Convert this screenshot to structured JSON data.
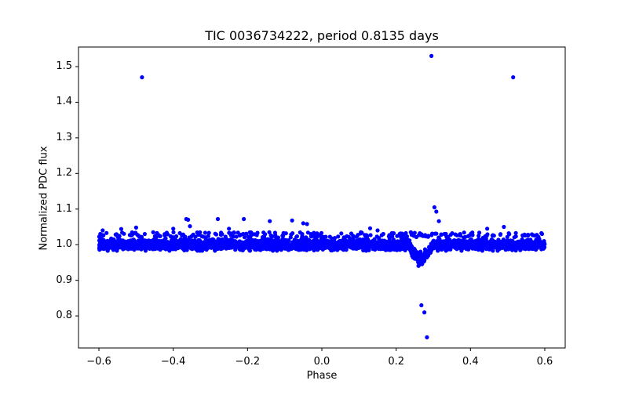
{
  "chart_data": {
    "type": "scatter",
    "title": "TIC 0036734222, period 0.8135 days",
    "xlabel": "Phase",
    "ylabel": "Normalized PDC flux",
    "xlim": [
      -0.655,
      0.655
    ],
    "ylim": [
      0.71,
      1.555
    ],
    "xticks": [
      -0.6,
      -0.4,
      -0.2,
      0.0,
      0.2,
      0.4,
      0.6
    ],
    "xtick_labels": [
      "−0.6",
      "−0.4",
      "−0.2",
      "0.0",
      "0.2",
      "0.4",
      "0.6"
    ],
    "yticks": [
      0.8,
      0.9,
      1.0,
      1.1,
      1.2,
      1.3,
      1.4,
      1.5
    ],
    "ytick_labels": [
      "0.8",
      "0.9",
      "1.0",
      "1.1",
      "1.2",
      "1.3",
      "1.4",
      "1.5"
    ],
    "grid": false,
    "legend": null,
    "marker_color": "#0000ff",
    "series": [
      {
        "name": "light curve",
        "description": "dense band of points between phase -0.6 and 0.6 around flux ~0.985-1.02, with a transit dip centered at phase ~0.265 reaching ~0.955",
        "band": {
          "x_range": [
            -0.6,
            0.6
          ],
          "y_center": 1.0,
          "y_low": 0.983,
          "y_high": 1.02
        },
        "dip": {
          "center": 0.265,
          "half_width": 0.03,
          "min_flux": 0.955
        },
        "outliers": [
          {
            "x": -0.484,
            "y": 1.47
          },
          {
            "x": 0.295,
            "y": 1.53
          },
          {
            "x": 0.515,
            "y": 1.47
          },
          {
            "x": 0.303,
            "y": 1.105
          },
          {
            "x": 0.308,
            "y": 1.093
          },
          {
            "x": 0.315,
            "y": 1.066
          },
          {
            "x": 0.268,
            "y": 0.83
          },
          {
            "x": 0.276,
            "y": 0.81
          },
          {
            "x": 0.283,
            "y": 0.74
          },
          {
            "x": -0.365,
            "y": 1.072
          },
          {
            "x": -0.36,
            "y": 1.07
          },
          {
            "x": -0.355,
            "y": 1.052
          },
          {
            "x": -0.28,
            "y": 1.072
          },
          {
            "x": -0.21,
            "y": 1.072
          },
          {
            "x": -0.14,
            "y": 1.066
          },
          {
            "x": -0.08,
            "y": 1.068
          },
          {
            "x": -0.05,
            "y": 1.06
          },
          {
            "x": -0.04,
            "y": 1.058
          },
          {
            "x": -0.5,
            "y": 1.048
          },
          {
            "x": -0.54,
            "y": 1.044
          },
          {
            "x": 0.49,
            "y": 1.05
          },
          {
            "x": 0.445,
            "y": 1.045
          },
          {
            "x": -0.59,
            "y": 1.04
          },
          {
            "x": 0.13,
            "y": 1.046
          },
          {
            "x": 0.15,
            "y": 1.04
          },
          {
            "x": -0.25,
            "y": 1.045
          },
          {
            "x": -0.4,
            "y": 1.045
          }
        ]
      }
    ]
  }
}
